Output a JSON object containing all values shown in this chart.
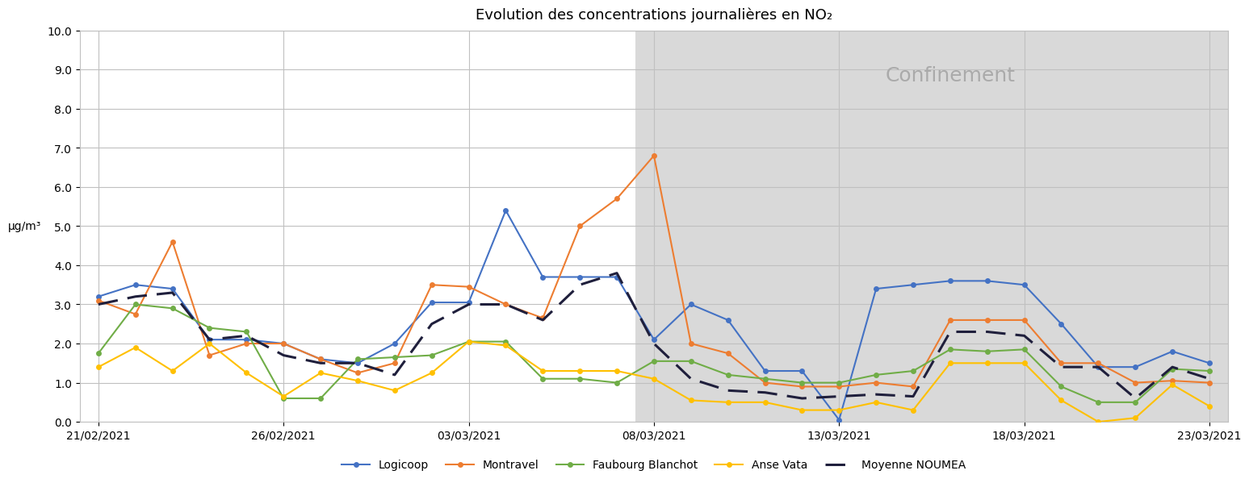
{
  "title": "Evolution des concentrations journalières en NO₂",
  "ylabel": "µg/m³",
  "ylim": [
    0.0,
    10.0
  ],
  "yticks": [
    0.0,
    1.0,
    2.0,
    3.0,
    4.0,
    5.0,
    6.0,
    7.0,
    8.0,
    9.0,
    10.0
  ],
  "confinement_start_index": 15,
  "confinement_label": "Confinement",
  "background_color": "#ffffff",
  "confinement_color": "#d9d9d9",
  "dates": [
    "21/02/2021",
    "22/02/2021",
    "23/02/2021",
    "24/02/2021",
    "25/02/2021",
    "26/02/2021",
    "27/02/2021",
    "28/02/2021",
    "01/03/2021",
    "02/03/2021",
    "03/03/2021",
    "04/03/2021",
    "05/03/2021",
    "06/03/2021",
    "07/03/2021",
    "08/03/2021",
    "09/03/2021",
    "10/03/2021",
    "11/03/2021",
    "12/03/2021",
    "13/03/2021",
    "14/03/2021",
    "15/03/2021",
    "16/03/2021",
    "17/03/2021",
    "18/03/2021",
    "19/03/2021",
    "20/03/2021",
    "21/03/2021",
    "22/03/2021",
    "23/03/2021"
  ],
  "xtick_labels": [
    "21/02/2021",
    "26/02/2021",
    "03/03/2021",
    "08/03/2021",
    "13/03/2021",
    "18/03/2021",
    "23/03/2021"
  ],
  "xtick_indices": [
    0,
    5,
    10,
    15,
    20,
    25,
    30
  ],
  "series": {
    "Logicoop": {
      "color": "#4472c4",
      "marker": "o",
      "linestyle": "-",
      "values": [
        3.2,
        3.5,
        3.4,
        2.1,
        2.1,
        2.0,
        1.6,
        1.5,
        2.0,
        3.05,
        3.05,
        5.4,
        3.7,
        3.7,
        3.7,
        2.1,
        3.0,
        2.6,
        1.3,
        1.3,
        0.05,
        3.4,
        3.5,
        3.6,
        3.6,
        3.5,
        2.5,
        1.4,
        1.4,
        1.8,
        1.5
      ]
    },
    "Montravel": {
      "color": "#ed7d31",
      "marker": "o",
      "linestyle": "-",
      "values": [
        3.1,
        2.75,
        4.6,
        1.7,
        2.0,
        2.0,
        1.6,
        1.25,
        1.5,
        3.5,
        3.45,
        3.0,
        2.65,
        5.0,
        5.7,
        6.8,
        2.0,
        1.75,
        1.0,
        0.9,
        0.9,
        1.0,
        0.9,
        2.6,
        2.6,
        2.6,
        1.5,
        1.5,
        1.0,
        1.05,
        1.0
      ]
    },
    "Faubourg Blanchot": {
      "color": "#70ad47",
      "marker": "o",
      "linestyle": "-",
      "values": [
        1.75,
        3.0,
        2.9,
        2.4,
        2.3,
        0.6,
        0.6,
        1.6,
        1.65,
        1.7,
        2.05,
        2.05,
        1.1,
        1.1,
        1.0,
        1.55,
        1.55,
        1.2,
        1.1,
        1.0,
        1.0,
        1.2,
        1.3,
        1.85,
        1.8,
        1.85,
        0.9,
        0.5,
        0.5,
        1.35,
        1.3
      ]
    },
    "Anse Vata": {
      "color": "#ffc000",
      "marker": "o",
      "linestyle": "-",
      "values": [
        1.4,
        1.9,
        1.3,
        2.0,
        1.25,
        0.65,
        1.25,
        1.05,
        0.8,
        1.25,
        2.05,
        1.95,
        1.3,
        1.3,
        1.3,
        1.1,
        0.55,
        0.5,
        0.5,
        0.3,
        0.3,
        0.5,
        0.3,
        1.5,
        1.5,
        1.5,
        0.55,
        0.0,
        0.1,
        0.95,
        0.4
      ]
    },
    "Moyenne NOUMEA": {
      "color": "#1f1f3c",
      "linestyle": "--",
      "marker": null,
      "values": [
        3.0,
        3.2,
        3.3,
        2.1,
        2.2,
        1.7,
        1.5,
        1.5,
        1.2,
        2.5,
        3.0,
        3.0,
        2.6,
        3.5,
        3.8,
        2.0,
        1.1,
        0.8,
        0.75,
        0.6,
        0.65,
        0.7,
        0.65,
        2.3,
        2.3,
        2.2,
        1.4,
        1.4,
        0.6,
        1.4,
        1.1
      ]
    }
  }
}
